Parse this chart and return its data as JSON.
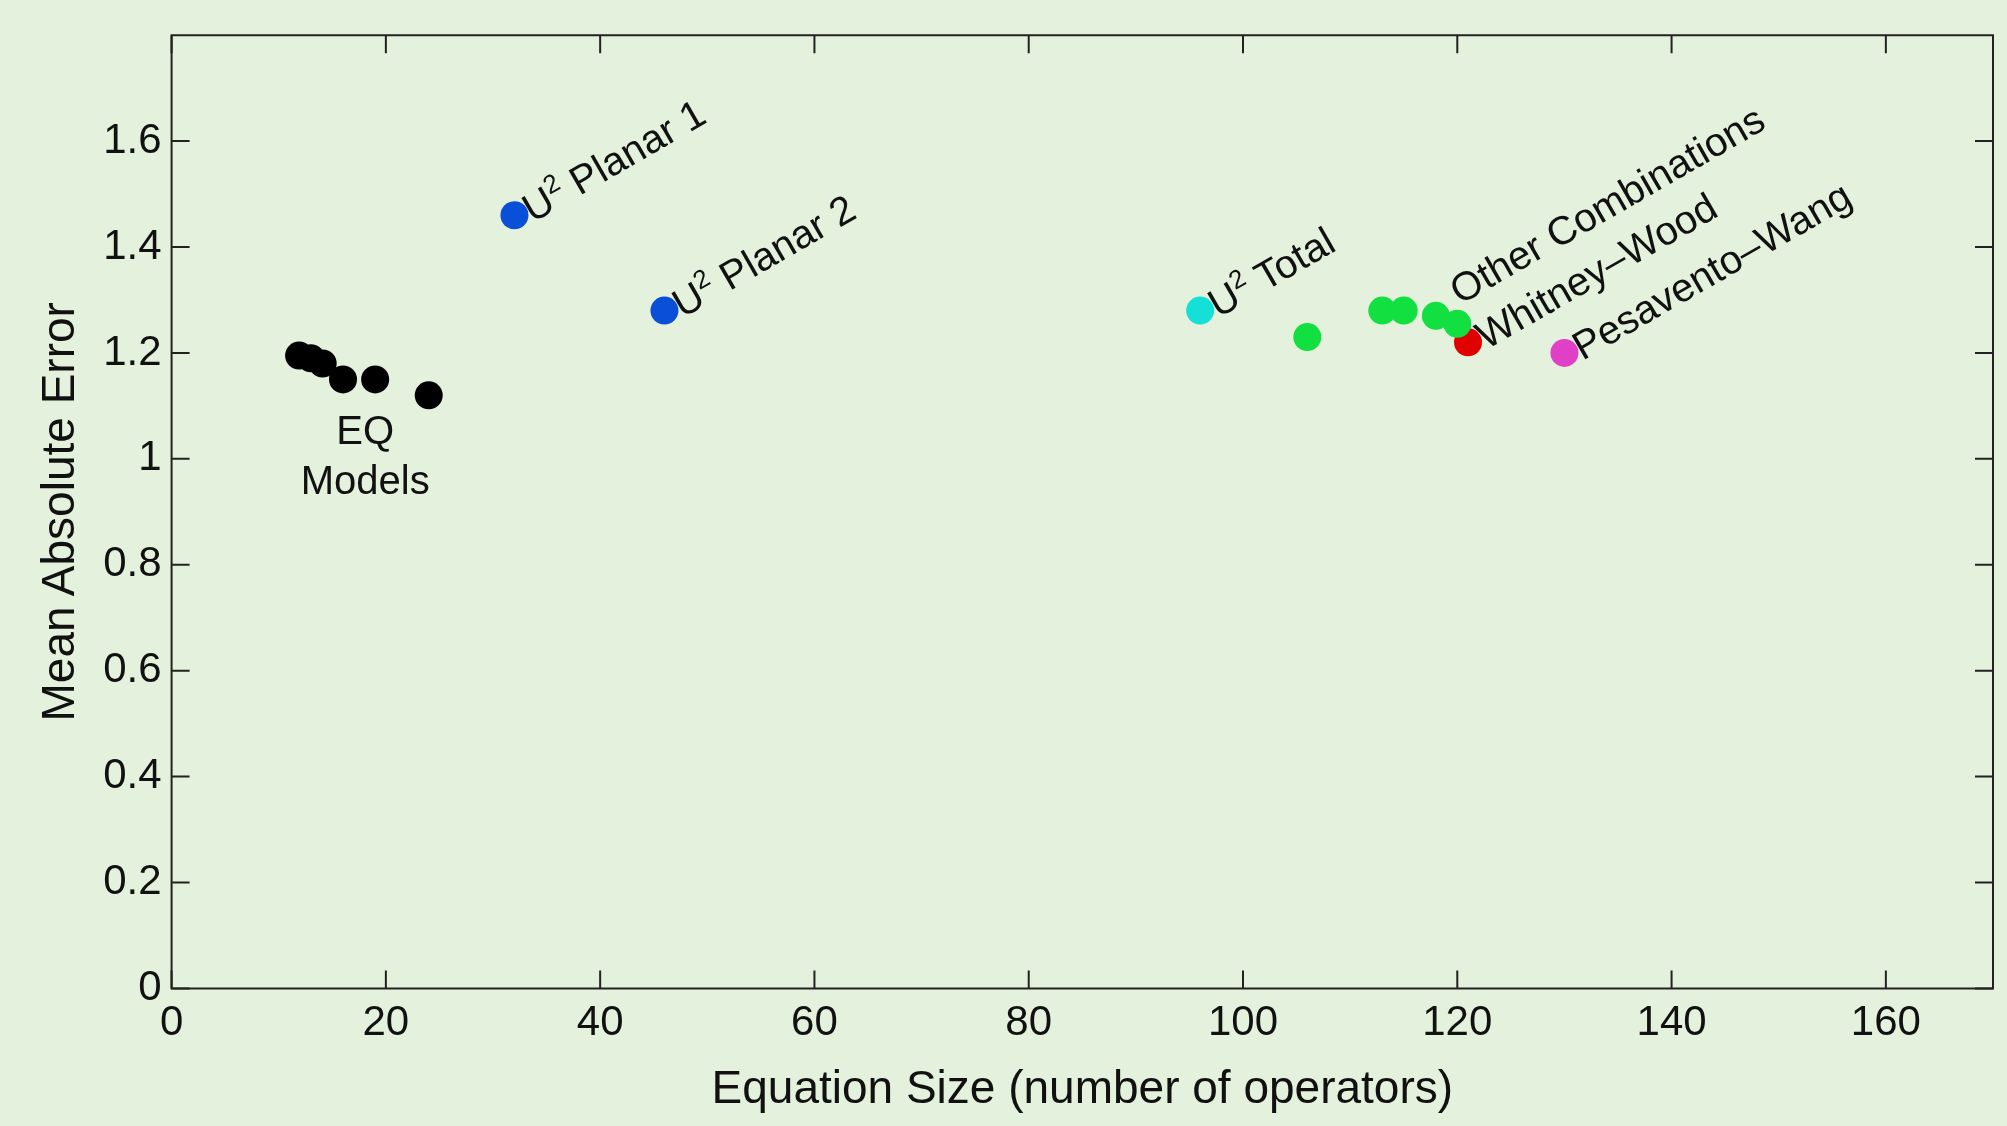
{
  "chart_data": {
    "type": "scatter",
    "xlabel": "Equation Size (number of operators)",
    "ylabel": "Mean Absolute Error",
    "xlim": [
      0,
      170
    ],
    "xticks": [
      0,
      20,
      40,
      60,
      80,
      100,
      120,
      140,
      160
    ],
    "ylim": [
      0,
      1.8
    ],
    "yticks": [
      0,
      0.2,
      0.4,
      0.6,
      0.8,
      1,
      1.2,
      1.4,
      1.6
    ],
    "grid": false,
    "legend": false,
    "marker": "circle",
    "series": [
      {
        "color": "#000000",
        "x": [
          11.9,
          13,
          14.1,
          16,
          19,
          24
        ],
        "values": [
          1.195,
          1.19,
          1.18,
          1.15,
          1.15,
          1.12
        ]
      },
      {
        "color": "#0a4fd8",
        "x": [
          32,
          46
        ],
        "values": [
          1.46,
          1.28
        ]
      },
      {
        "color": "#14e0d8",
        "x": [
          96
        ],
        "values": [
          1.28
        ]
      },
      {
        "color": "#12e040",
        "x": [
          106,
          113,
          115,
          118,
          120
        ],
        "values": [
          1.23,
          1.28,
          1.28,
          1.27,
          1.255
        ]
      },
      {
        "color": "#e00000",
        "x": [
          121
        ],
        "values": [
          1.22
        ]
      },
      {
        "color": "#e040c8",
        "x": [
          130
        ],
        "values": [
          1.2
        ]
      }
    ],
    "annotations": [
      {
        "text": "EQ\nModels",
        "x": 19,
        "y": 1.15
      },
      {
        "text": "U$^{2}$ Planar 1",
        "x": 32,
        "y": 1.46
      },
      {
        "text": "U$^{2}$ Planar 2",
        "x": 46,
        "y": 1.28
      },
      {
        "text": "U$^{2}$ Total",
        "x": 96,
        "y": 1.28
      },
      {
        "text": "Other Combinations",
        "x": 120,
        "y": 1.255
      },
      {
        "text": "Whitney–Wood",
        "x": 121,
        "y": 1.22
      },
      {
        "text": "Pesavento–Wang",
        "x": 130,
        "y": 1.2
      }
    ]
  }
}
